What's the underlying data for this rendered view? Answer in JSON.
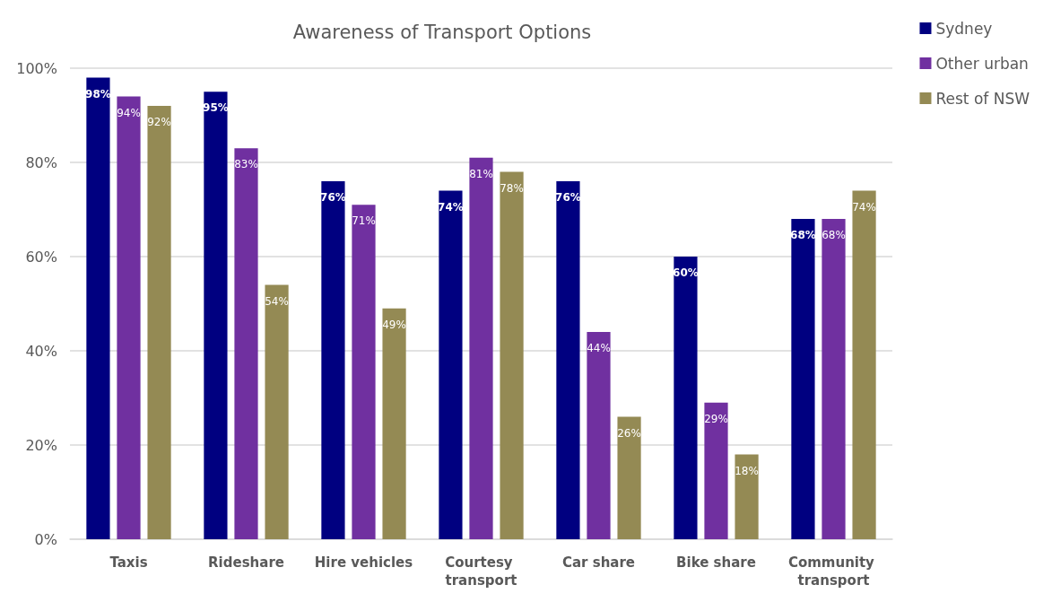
{
  "chart_data": {
    "type": "bar",
    "title": "Awareness of Transport Options",
    "categories": [
      "Taxis",
      "Rideshare",
      "Hire vehicles",
      "Courtesy transport",
      "Car share",
      "Bike share",
      "Community transport"
    ],
    "series": [
      {
        "name": "Sydney",
        "color": "#000080",
        "values": [
          98,
          95,
          76,
          74,
          76,
          60,
          68
        ],
        "value_labels": [
          "98%",
          "95%",
          "76%",
          "74%",
          "76%",
          "60%",
          "68%"
        ]
      },
      {
        "name": "Other urban",
        "color": "#7030a0",
        "values": [
          94,
          83,
          71,
          81,
          44,
          29,
          68
        ],
        "value_labels": [
          "94%",
          "83%",
          "71%",
          "81%",
          "44%",
          "29%",
          "68%"
        ]
      },
      {
        "name": "Rest of NSW",
        "color": "#948a54",
        "values": [
          92,
          54,
          49,
          78,
          26,
          18,
          74
        ],
        "value_labels": [
          "92%",
          "54%",
          "49%",
          "78%",
          "26%",
          "18%",
          "74%"
        ]
      }
    ],
    "ylim": [
      0,
      100
    ],
    "yticks": [
      {
        "value": 0,
        "label": "0%"
      },
      {
        "value": 20,
        "label": "20%"
      },
      {
        "value": 40,
        "label": "40%"
      },
      {
        "value": 60,
        "label": "60%"
      },
      {
        "value": 80,
        "label": "80%"
      },
      {
        "value": 100,
        "label": "100%"
      }
    ],
    "grid": "y",
    "legend": "top right"
  }
}
